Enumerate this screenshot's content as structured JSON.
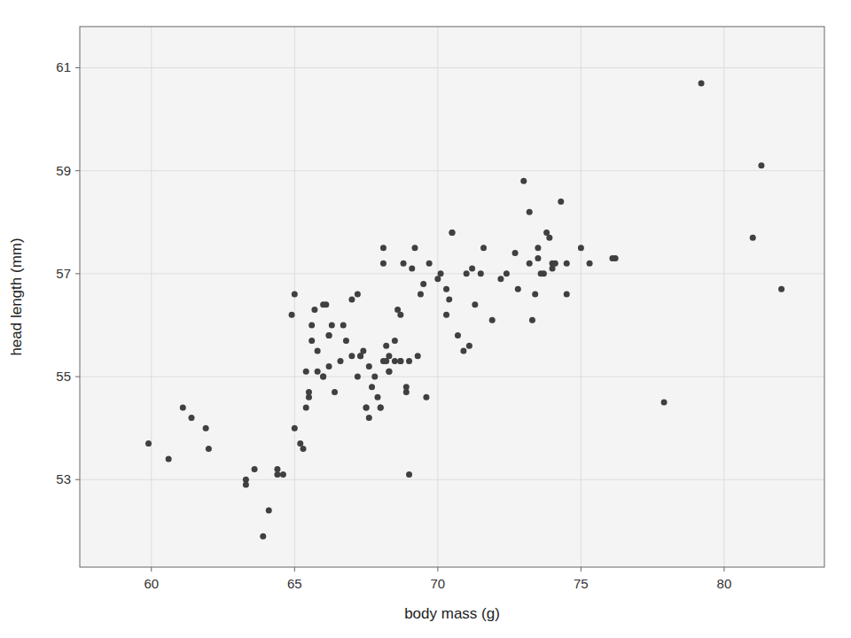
{
  "chart_data": {
    "type": "scatter",
    "xlabel": "body mass (g)",
    "ylabel": "head length (mm)",
    "color": "#404040",
    "grid": true,
    "xlim": [
      57.5,
      83.5
    ],
    "ylim": [
      51.3,
      61.8
    ],
    "xticks": [
      60,
      65,
      70,
      75,
      80
    ],
    "yticks": [
      53,
      55,
      57,
      59,
      61
    ],
    "x": [
      59.9,
      60.6,
      61.1,
      61.4,
      61.9,
      62.0,
      63.3,
      63.3,
      63.6,
      63.9,
      64.1,
      64.4,
      64.4,
      64.6,
      64.9,
      65.0,
      65.0,
      65.2,
      65.3,
      65.4,
      65.4,
      65.5,
      65.5,
      65.6,
      65.6,
      65.7,
      65.8,
      65.8,
      66.0,
      66.0,
      66.0,
      66.1,
      66.2,
      66.2,
      66.2,
      66.3,
      66.4,
      66.6,
      66.7,
      66.8,
      67.0,
      67.0,
      67.2,
      67.2,
      67.3,
      67.3,
      67.4,
      67.5,
      67.5,
      67.6,
      67.6,
      67.7,
      67.8,
      67.9,
      68.0,
      68.0,
      68.1,
      68.1,
      68.1,
      68.2,
      68.2,
      68.3,
      68.3,
      68.3,
      68.5,
      68.5,
      68.6,
      68.7,
      68.7,
      68.7,
      68.8,
      68.9,
      68.9,
      69.0,
      69.0,
      69.1,
      69.2,
      69.3,
      69.4,
      69.5,
      69.6,
      69.7,
      70.0,
      70.1,
      70.3,
      70.3,
      70.4,
      70.5,
      70.5,
      70.7,
      70.9,
      71.0,
      71.1,
      71.2,
      71.3,
      71.5,
      71.6,
      71.9,
      72.2,
      72.4,
      72.7,
      72.8,
      73.0,
      73.2,
      73.2,
      73.3,
      73.4,
      73.5,
      73.5,
      73.6,
      73.7,
      73.8,
      73.9,
      74.0,
      74.0,
      74.1,
      74.3,
      74.5,
      74.5,
      75.0,
      75.3,
      76.1,
      76.2,
      77.9,
      79.2,
      81.0,
      81.3,
      82.0
    ],
    "values": [
      53.7,
      53.4,
      54.4,
      54.2,
      54.0,
      53.6,
      52.9,
      53.0,
      53.2,
      51.9,
      52.4,
      53.1,
      53.2,
      53.1,
      56.2,
      54.0,
      56.6,
      53.7,
      53.6,
      54.4,
      55.1,
      54.6,
      54.7,
      55.7,
      56.0,
      56.3,
      55.1,
      55.5,
      55.0,
      55.0,
      56.4,
      56.4,
      55.8,
      55.8,
      55.2,
      56.0,
      54.7,
      55.3,
      56.0,
      55.7,
      55.4,
      56.5,
      55.0,
      56.6,
      55.4,
      55.4,
      55.5,
      54.4,
      54.4,
      55.2,
      54.2,
      54.8,
      55.0,
      54.6,
      54.4,
      54.4,
      57.5,
      57.2,
      55.3,
      55.6,
      55.3,
      55.1,
      55.1,
      55.4,
      55.3,
      55.7,
      56.3,
      55.3,
      55.3,
      56.2,
      57.2,
      54.7,
      54.8,
      53.1,
      55.3,
      57.1,
      57.5,
      55.4,
      56.6,
      56.8,
      54.6,
      57.2,
      56.9,
      57.0,
      56.7,
      56.2,
      56.5,
      57.8,
      57.8,
      55.8,
      55.5,
      57.0,
      55.6,
      57.1,
      56.4,
      57.0,
      57.5,
      56.1,
      56.9,
      57.0,
      57.4,
      56.7,
      58.8,
      57.2,
      58.2,
      56.1,
      56.6,
      57.3,
      57.5,
      57.0,
      57.0,
      57.8,
      57.7,
      57.1,
      57.2,
      57.2,
      58.4,
      56.6,
      57.2,
      57.5,
      57.2,
      57.3,
      57.3,
      54.5,
      60.7,
      57.7,
      59.1,
      56.7
    ]
  }
}
